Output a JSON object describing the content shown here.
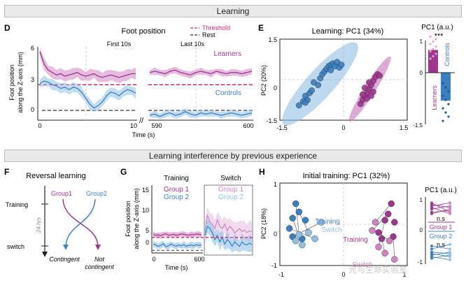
{
  "section_top": {
    "title": "Learning"
  },
  "section_bottom": {
    "title": "Learning interference by previous experience"
  },
  "colors": {
    "learners": "#a0358f",
    "controls": "#3b7fc0",
    "learners_light": "#cf84c4",
    "controls_light": "#8fc0e6",
    "threshold": "#e0245e",
    "rest": "#333333",
    "banner": "#e9e9e9"
  },
  "watermark": "光与生命实验室",
  "chart_data": [
    {
      "panel": "D",
      "type": "line",
      "title": "Foot position",
      "ylabel": "Foot position\nalong the Z-axis (mm)",
      "xlabel": "Time (s)",
      "ylim": [
        0,
        6
      ],
      "yticks": [
        "0",
        "3",
        "6"
      ],
      "segments": [
        {
          "label": "First 10s",
          "x_ticks": [
            "0",
            "10"
          ]
        },
        {
          "label": "Last 10s",
          "x_ticks": [
            "590",
            "600"
          ]
        }
      ],
      "legend": [
        {
          "name": "Threshold",
          "style": "dashed"
        },
        {
          "name": "Rest",
          "style": "dashed"
        }
      ],
      "series": [
        {
          "name": "Learners",
          "first10": [
            5.6,
            4.6,
            4.1,
            3.9,
            3.7,
            3.8,
            3.6,
            3.7,
            3.8,
            3.9,
            3.7,
            3.6,
            3.7,
            3.8,
            3.6,
            3.5,
            3.6,
            3.7,
            3.6,
            3.5,
            3.6,
            3.7,
            3.8,
            3.8
          ],
          "last10": [
            3.9,
            4.0,
            3.9,
            3.8,
            4.0,
            4.1,
            3.9,
            3.8,
            3.7,
            3.9,
            4.0,
            3.9,
            3.8,
            4.0,
            3.9,
            3.8,
            3.9,
            3.9,
            3.8,
            3.9,
            4.0
          ]
        },
        {
          "name": "Controls",
          "first10": [
            3.0,
            3.2,
            3.1,
            2.9,
            2.8,
            2.6,
            2.7,
            2.5,
            2.7,
            2.6,
            2.3,
            1.8,
            1.3,
            1.0,
            1.2,
            1.5,
            2.0,
            2.3,
            2.2,
            2.0,
            2.3,
            2.5,
            2.4,
            2.2
          ],
          "last10": [
            0.4,
            0.5,
            0.3,
            0.5,
            0.6,
            0.4,
            0.5,
            0.7,
            0.5,
            0.4,
            0.6,
            0.5,
            0.6,
            0.5,
            0.4,
            0.5,
            0.6,
            0.5,
            0.4,
            0.5,
            0.6
          ]
        }
      ],
      "threshold": 2.9,
      "rest": 0
    },
    {
      "panel": "E",
      "type": "scatter",
      "title": "Learning: PC1 (34%)",
      "xlabel": "",
      "ylabel": "PC2 (20%)",
      "xlim": [
        -1.5,
        1.5
      ],
      "ylim": [
        -1.5,
        1.5
      ],
      "xticks": [
        "-1.5",
        "0",
        "1.5"
      ],
      "yticks": [
        "1.5",
        "0",
        "-1.5"
      ],
      "series": [
        {
          "name": "Controls",
          "points": [
            [
              -1.05,
              -0.95
            ],
            [
              -0.95,
              -0.8
            ],
            [
              -0.9,
              -0.6
            ],
            [
              -0.85,
              -0.75
            ],
            [
              -0.8,
              -0.5
            ],
            [
              -0.75,
              -0.4
            ],
            [
              -0.7,
              -0.1
            ],
            [
              -0.55,
              0.05
            ],
            [
              -0.5,
              0.2
            ],
            [
              -0.45,
              0.3
            ],
            [
              -0.4,
              0.4
            ],
            [
              -0.35,
              0.5
            ],
            [
              -0.3,
              0.55
            ],
            [
              -0.25,
              0.6
            ],
            [
              -0.2,
              0.5
            ],
            [
              -0.15,
              0.65
            ],
            [
              -0.1,
              0.45
            ],
            [
              -0.05,
              0.55
            ],
            [
              -0.3,
              0.35
            ],
            [
              -0.6,
              -0.2
            ],
            [
              -0.9,
              -0.85
            ]
          ]
        },
        {
          "name": "Learners",
          "points": [
            [
              0.4,
              -0.9
            ],
            [
              0.45,
              -0.75
            ],
            [
              0.5,
              -0.6
            ],
            [
              0.55,
              -0.5
            ],
            [
              0.6,
              -0.35
            ],
            [
              0.65,
              -0.2
            ],
            [
              0.7,
              -0.05
            ],
            [
              0.75,
              0.1
            ],
            [
              0.8,
              0.2
            ],
            [
              0.6,
              -0.1
            ],
            [
              0.5,
              -0.3
            ],
            [
              0.7,
              -0.45
            ],
            [
              0.55,
              -0.7
            ],
            [
              0.45,
              -0.55
            ],
            [
              0.85,
              0.15
            ],
            [
              0.65,
              -0.6
            ]
          ]
        }
      ]
    },
    {
      "panel": "E-inset",
      "type": "bar",
      "title": "PC1 (a.u.)",
      "ylim": [
        -1.5,
        1
      ],
      "yticks": [
        "1",
        "0",
        "-1.5"
      ],
      "significance": "***",
      "categories": [
        "Learners",
        "Controls"
      ],
      "values": [
        0.65,
        -0.8
      ]
    },
    {
      "panel": "F",
      "type": "diagram",
      "title": "Reversal learning",
      "row_labels": [
        "Training",
        "24 hrs",
        "switch"
      ],
      "groups": [
        "Group1",
        "Group2"
      ],
      "outcomes": [
        "Contingent",
        "Not contingent"
      ]
    },
    {
      "panel": "G",
      "type": "line",
      "ylabel": "Foot position\nalong the Z-axis (mm)",
      "xlabel": "Time (s)",
      "ylim": [
        0,
        15
      ],
      "yticks": [
        "0",
        "5",
        "10",
        "15"
      ],
      "xticks": [
        "0",
        "600"
      ],
      "subplots": [
        "Training",
        "Switch"
      ],
      "series": [
        {
          "name": "Group 1",
          "training": [
            4.2,
            4.0,
            4.1,
            3.9,
            4.2,
            4.3,
            4.0,
            4.1,
            4.2,
            4.0,
            4.1,
            4.3,
            4.2,
            4.1,
            4.0,
            4.2,
            4.1,
            4.3,
            4.2,
            4.1
          ],
          "switch": [
            5.0,
            8.5,
            7.0,
            6.5,
            5.5,
            7.5,
            6.0,
            5.5,
            6.5,
            5.0,
            6.0,
            5.5,
            4.5,
            5.0,
            5.5,
            4.8,
            5.2,
            4.6,
            5.0,
            4.8
          ]
        },
        {
          "name": "Group 2",
          "training": [
            2.0,
            1.8,
            1.5,
            1.7,
            2.1,
            1.4,
            1.6,
            2.0,
            1.7,
            1.5,
            1.8,
            1.6,
            1.9,
            1.5,
            1.7,
            1.8,
            1.6,
            1.9,
            1.7,
            1.8
          ],
          "switch": [
            4.0,
            6.0,
            5.5,
            4.5,
            3.0,
            4.0,
            2.5,
            3.5,
            2.0,
            3.0,
            2.5,
            1.5,
            2.5,
            2.0,
            1.5,
            2.5,
            2.0,
            1.8,
            2.2,
            1.9
          ]
        }
      ],
      "threshold": 3.5
    },
    {
      "panel": "H",
      "type": "scatter",
      "title": "Initial training: PC1 (32%)",
      "ylabel": "PC2 (18%)",
      "xlim": [
        -1,
        1
      ],
      "ylim": [
        -1,
        1
      ],
      "xticks": [
        "-1",
        "0",
        "1"
      ],
      "yticks": [
        "1",
        "0",
        "-1"
      ],
      "annotations": [
        "Training",
        "Switch",
        "Training",
        "Switch"
      ],
      "series": [
        {
          "name": "Group 2 training",
          "points": [
            [
              -0.75,
              0.5
            ],
            [
              -0.8,
              0.15
            ],
            [
              -0.85,
              -0.1
            ],
            [
              -0.8,
              -0.3
            ],
            [
              -0.65,
              -0.35
            ],
            [
              -0.7,
              0.3
            ],
            [
              -0.6,
              0.1
            ]
          ]
        },
        {
          "name": "Group 2 switch",
          "points": [
            [
              -0.7,
              -0.25
            ],
            [
              -0.65,
              -0.5
            ],
            [
              -0.45,
              -0.35
            ],
            [
              -0.35,
              0.05
            ],
            [
              -0.75,
              -0.4
            ],
            [
              -0.55,
              -0.2
            ]
          ]
        },
        {
          "name": "Group 1 training",
          "points": [
            [
              0.75,
              0.5
            ],
            [
              0.7,
              0.25
            ],
            [
              0.65,
              0.1
            ],
            [
              0.6,
              -0.35
            ],
            [
              0.78,
              -0.3
            ],
            [
              0.55,
              -0.2
            ],
            [
              0.8,
              0.05
            ]
          ]
        },
        {
          "name": "Group 1 switch",
          "points": [
            [
              0.5,
              0.05
            ],
            [
              0.45,
              -0.15
            ],
            [
              0.55,
              -0.55
            ],
            [
              0.65,
              -0.7
            ],
            [
              0.8,
              -0.85
            ],
            [
              0.72,
              -0.4
            ]
          ]
        }
      ]
    },
    {
      "panel": "H-inset",
      "type": "line",
      "title": "PC1 (a.u.)",
      "yticks": [
        "1",
        "0",
        "-1"
      ],
      "groups": [
        {
          "name": "Group 1",
          "stat": "n.s",
          "pairs": [
            [
              0.9,
              0.6
            ],
            [
              0.85,
              0.75
            ],
            [
              0.8,
              0.9
            ],
            [
              0.75,
              0.55
            ],
            [
              0.7,
              0.8
            ],
            [
              0.6,
              0.65
            ],
            [
              0.55,
              0.7
            ]
          ]
        },
        {
          "name": "Group 2",
          "stat": "n.s",
          "pairs": [
            [
              -0.5,
              -0.6
            ],
            [
              -0.6,
              -0.45
            ],
            [
              -0.7,
              -0.75
            ],
            [
              -0.75,
              -0.85
            ],
            [
              -0.8,
              -0.7
            ],
            [
              -0.9,
              -0.8
            ],
            [
              -0.85,
              -0.95
            ]
          ]
        }
      ]
    }
  ]
}
